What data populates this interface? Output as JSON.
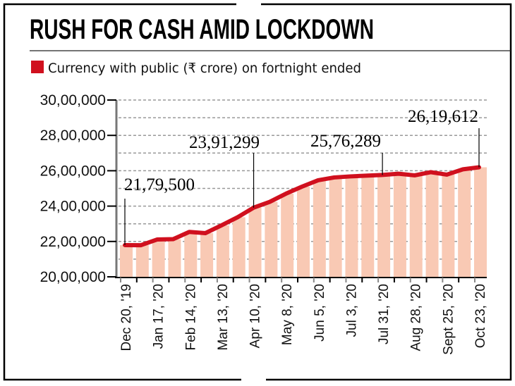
{
  "chart_data": {
    "type": "bar",
    "title": "RUSH FOR CASH AMID LOCKDOWN",
    "legend": [
      {
        "name": "Currency with public (₹ crore) on fortnight ended",
        "color": "#d0101e"
      }
    ],
    "ylim": [
      2000000,
      3000000
    ],
    "yticks": [
      2000000,
      2200000,
      2400000,
      2600000,
      2800000,
      3000000
    ],
    "ytick_labels": [
      "20,00,000",
      "22,00,000",
      "24,00,000",
      "26,00,000",
      "28,00,000",
      "30,00,000"
    ],
    "grid": true,
    "x_tick_labels": [
      "Dec 20, '19",
      "Jan 17, '20",
      "Feb 14, '20",
      "Mar 13, '20",
      "Apr 10, '20",
      "May 8, '20",
      "Jun 5, '20",
      "Jul 3, '20",
      "Jul 31, '20",
      "Aug 28, '20",
      "Sept 25, '20",
      "Oct 23, '20"
    ],
    "values": [
      2179500,
      2179000,
      2211000,
      2213000,
      2254000,
      2247000,
      2291000,
      2337000,
      2391299,
      2424000,
      2470000,
      2510000,
      2546000,
      2562000,
      2568000,
      2572000,
      2576289,
      2583000,
      2574000,
      2592000,
      2578000,
      2608000,
      2619612
    ],
    "annotations": [
      {
        "index": 0,
        "text": "21,79,500"
      },
      {
        "index": 8,
        "text": "23,91,299"
      },
      {
        "index": 16,
        "text": "25,76,289"
      },
      {
        "index": 22,
        "text": "26,19,612"
      }
    ],
    "colors": {
      "bar": "#f9c9b4",
      "line": "#d0101e",
      "grid": "#999999"
    }
  }
}
